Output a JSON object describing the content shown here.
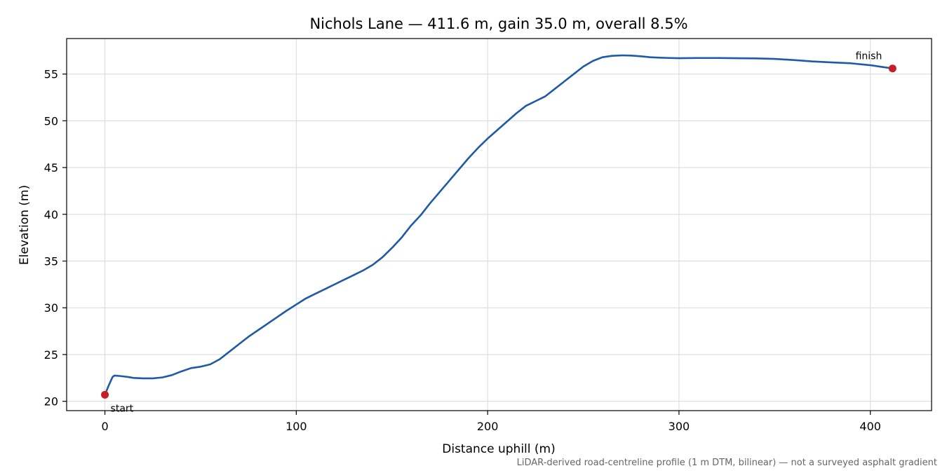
{
  "chart_data": {
    "type": "line",
    "title": "Nichols Lane — 411.6 m, gain 35.0 m, overall 8.5%",
    "xlabel": "Distance uphill (m)",
    "ylabel": "Elevation (m)",
    "xlim": [
      -20,
      432
    ],
    "ylim": [
      19,
      58.8
    ],
    "xticks": [
      0,
      100,
      200,
      300,
      400
    ],
    "yticks": [
      20,
      25,
      30,
      35,
      40,
      45,
      50,
      55
    ],
    "grid": true,
    "line_color": "#1f5aa6",
    "marker_color": "#c81e28",
    "series": [
      {
        "x": [
          0,
          2,
          4,
          5,
          8,
          12,
          15,
          20,
          25,
          30,
          35,
          40,
          45,
          50,
          55,
          60,
          65,
          70,
          75,
          80,
          85,
          90,
          95,
          100,
          105,
          110,
          115,
          120,
          125,
          130,
          135,
          140,
          145,
          150,
          155,
          160,
          165,
          170,
          175,
          180,
          185,
          190,
          195,
          200,
          205,
          210,
          215,
          220,
          225,
          230,
          235,
          240,
          245,
          250,
          255,
          260,
          265,
          270,
          275,
          280,
          285,
          290,
          295,
          300,
          310,
          320,
          330,
          340,
          350,
          360,
          370,
          380,
          390,
          400,
          405,
          411.6
        ],
        "y": [
          20.7,
          21.7,
          22.6,
          22.75,
          22.7,
          22.6,
          22.5,
          22.45,
          22.45,
          22.55,
          22.8,
          23.2,
          23.55,
          23.7,
          23.95,
          24.5,
          25.3,
          26.1,
          26.9,
          27.6,
          28.3,
          29.0,
          29.7,
          30.35,
          31.0,
          31.5,
          32.0,
          32.5,
          33.0,
          33.5,
          34.0,
          34.6,
          35.4,
          36.4,
          37.5,
          38.8,
          39.9,
          41.2,
          42.4,
          43.6,
          44.8,
          46.0,
          47.1,
          48.1,
          49.0,
          49.9,
          50.8,
          51.6,
          52.1,
          52.6,
          53.4,
          54.2,
          55.0,
          55.8,
          56.4,
          56.8,
          56.95,
          57.0,
          56.98,
          56.9,
          56.8,
          56.75,
          56.72,
          56.7,
          56.72,
          56.72,
          56.7,
          56.68,
          56.62,
          56.5,
          56.35,
          56.25,
          56.15,
          55.95,
          55.8,
          55.6
        ]
      }
    ],
    "annotations": [
      {
        "text": "start",
        "x": 0,
        "y": 20.7
      },
      {
        "text": "finish",
        "x": 411.6,
        "y": 55.6
      }
    ],
    "footnote": "LiDAR-derived road-centreline profile (1 m DTM, bilinear) — not a surveyed asphalt gradient"
  }
}
